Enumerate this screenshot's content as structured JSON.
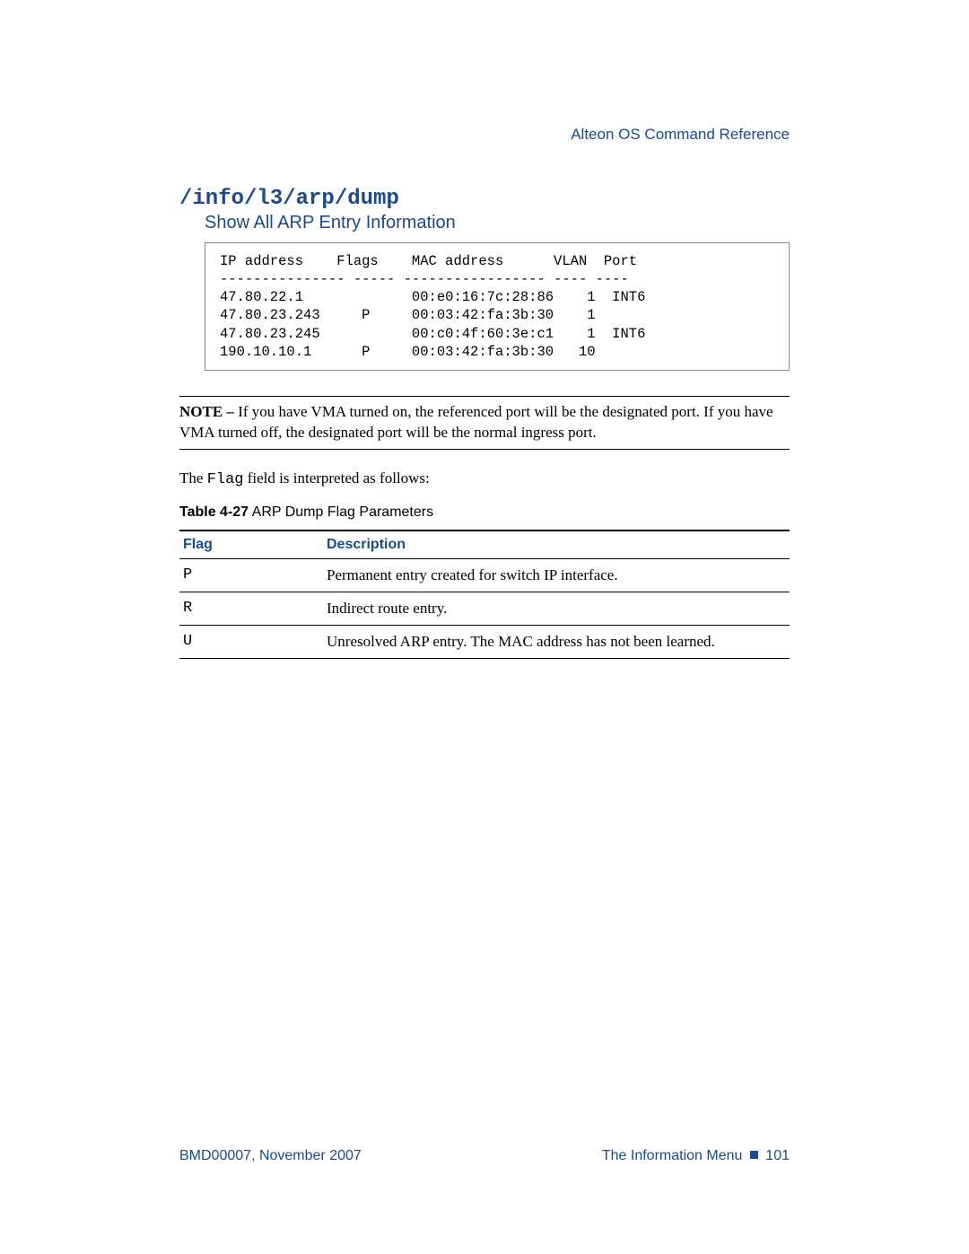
{
  "header": {
    "doc_title": "Alteon OS  Command Reference"
  },
  "command_title": "/info/l3/arp/dump",
  "subtitle": "Show All ARP Entry Information",
  "code_block": "IP address    Flags    MAC address      VLAN  Port\n--------------- ----- ----------------- ---- ----\n47.80.22.1             00:e0:16:7c:28:86    1  INT6\n47.80.23.243     P     00:03:42:fa:3b:30    1\n47.80.23.245           00:c0:4f:60:3e:c1    1  INT6\n190.10.10.1      P     00:03:42:fa:3b:30   10",
  "note": {
    "label": "NOTE – ",
    "text": "If you have VMA turned on, the referenced port will be the designated port. If you have VMA turned off, the designated port will be the normal ingress port."
  },
  "body_text_prefix": "The ",
  "body_text_code": "Flag",
  "body_text_suffix": " field is interpreted as follows:",
  "table": {
    "caption_bold": "Table 4-27",
    "caption_rest": "  ARP Dump Flag Parameters",
    "columns": [
      "Flag",
      "Description"
    ],
    "rows": [
      [
        "P",
        "Permanent entry created for switch IP interface."
      ],
      [
        "R",
        "Indirect route entry."
      ],
      [
        "U",
        "Unresolved ARP entry. The MAC address has not been learned."
      ]
    ]
  },
  "footer": {
    "left": "BMD00007, November 2007",
    "right_label": "The Information Menu",
    "page_number": "101"
  },
  "colors": {
    "accent": "#1a4a8a",
    "text": "#000000",
    "background": "#ffffff"
  }
}
